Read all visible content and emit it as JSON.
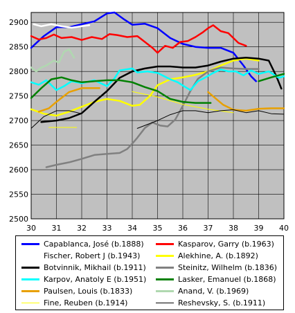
{
  "chart_data": {
    "type": "line",
    "xlabel": "",
    "ylabel": "",
    "xlim": [
      30,
      40
    ],
    "ylim": [
      2500,
      2920
    ],
    "x_ticks": [
      "30",
      "31",
      "32",
      "33",
      "34",
      "35",
      "36",
      "37",
      "38",
      "39",
      "40"
    ],
    "y_ticks": [
      "2500",
      "2550",
      "2600",
      "2650",
      "2700",
      "2750",
      "2800",
      "2850",
      "2900"
    ],
    "grid": true,
    "background": "#c0c0c0",
    "legend_position": "bottom",
    "series": [
      {
        "name": "Capablanca, José (b.1888)",
        "color": "#0000ff",
        "width": 2.5,
        "points": [
          [
            30,
            2848
          ],
          [
            30.5,
            2872
          ],
          [
            31,
            2890
          ],
          [
            31.5,
            2890
          ],
          [
            32,
            2896
          ],
          [
            32.5,
            2902
          ],
          [
            33,
            2918
          ],
          [
            33.3,
            2920
          ],
          [
            33.7,
            2905
          ],
          [
            34,
            2895
          ],
          [
            34.5,
            2897
          ],
          [
            35,
            2888
          ],
          [
            35.5,
            2868
          ],
          [
            36,
            2856
          ],
          [
            36.5,
            2850
          ],
          [
            37,
            2848
          ],
          [
            37.5,
            2848
          ],
          [
            38,
            2838
          ],
          [
            38.4,
            2812
          ],
          [
            38.7,
            2790
          ],
          [
            38.9,
            2780
          ]
        ]
      },
      {
        "name": "Kasparov, Garry (b.1963)",
        "color": "#ff0000",
        "width": 2.5,
        "points": [
          [
            30,
            2872
          ],
          [
            30.3,
            2865
          ],
          [
            30.6,
            2868
          ],
          [
            30.9,
            2875
          ],
          [
            31.2,
            2868
          ],
          [
            31.6,
            2870
          ],
          [
            32,
            2864
          ],
          [
            32.4,
            2870
          ],
          [
            32.8,
            2866
          ],
          [
            33.1,
            2876
          ],
          [
            33.4,
            2874
          ],
          [
            33.8,
            2870
          ],
          [
            34.2,
            2872
          ],
          [
            34.5,
            2860
          ],
          [
            34.8,
            2848
          ],
          [
            35,
            2838
          ],
          [
            35.3,
            2852
          ],
          [
            35.6,
            2848
          ],
          [
            35.9,
            2860
          ],
          [
            36.2,
            2862
          ],
          [
            36.5,
            2870
          ],
          [
            36.8,
            2880
          ],
          [
            37,
            2888
          ],
          [
            37.2,
            2894
          ],
          [
            37.5,
            2882
          ],
          [
            37.8,
            2878
          ],
          [
            38,
            2868
          ],
          [
            38.2,
            2858
          ],
          [
            38.5,
            2852
          ]
        ]
      },
      {
        "name": "Fischer, Robert J (b.1943)",
        "color": "#ffffff",
        "width": 2.5,
        "points": [
          [
            30.1,
            2896
          ],
          [
            30.4,
            2892
          ],
          [
            30.8,
            2896
          ],
          [
            31.2,
            2892
          ],
          [
            31.6,
            2889
          ],
          [
            32,
            2892
          ],
          [
            32.3,
            2894
          ]
        ]
      },
      {
        "name": "Alekhine, A. (b.1892)",
        "color": "#ffff00",
        "width": 2.5,
        "points": [
          [
            30,
            2723
          ],
          [
            30.5,
            2714
          ],
          [
            31,
            2710
          ],
          [
            31.5,
            2718
          ],
          [
            32,
            2728
          ],
          [
            32.5,
            2738
          ],
          [
            33,
            2744
          ],
          [
            33.5,
            2740
          ],
          [
            34,
            2730
          ],
          [
            34.3,
            2732
          ],
          [
            34.7,
            2750
          ],
          [
            35,
            2772
          ],
          [
            35.5,
            2784
          ],
          [
            36,
            2788
          ],
          [
            36.5,
            2793
          ],
          [
            37,
            2800
          ],
          [
            37.5,
            2812
          ],
          [
            38,
            2822
          ],
          [
            38.5,
            2826
          ],
          [
            39,
            2822
          ]
        ]
      },
      {
        "name": "Botvinnik, Mikhail (b.1911)",
        "color": "#000000",
        "width": 2.5,
        "points": [
          [
            30.4,
            2697
          ],
          [
            31,
            2700
          ],
          [
            31.5,
            2705
          ],
          [
            32,
            2715
          ],
          [
            32.5,
            2738
          ],
          [
            33,
            2760
          ],
          [
            33.5,
            2787
          ],
          [
            34,
            2800
          ],
          [
            34.5,
            2806
          ],
          [
            35,
            2810
          ],
          [
            35.5,
            2810
          ],
          [
            36,
            2808
          ],
          [
            36.5,
            2808
          ],
          [
            37,
            2812
          ],
          [
            37.5,
            2820
          ],
          [
            38,
            2826
          ],
          [
            38.5,
            2828
          ],
          [
            39,
            2826
          ],
          [
            39.4,
            2822
          ],
          [
            39.7,
            2790
          ],
          [
            39.9,
            2765
          ]
        ]
      },
      {
        "name": "Steinitz, Wilhelm (b.1836)",
        "color": "#808080",
        "width": 2.5,
        "points": [
          [
            30.6,
            2605
          ],
          [
            31,
            2610
          ],
          [
            31.5,
            2615
          ],
          [
            32,
            2622
          ],
          [
            32.5,
            2630
          ],
          [
            33,
            2632
          ],
          [
            33.5,
            2634
          ],
          [
            33.8,
            2642
          ],
          [
            34,
            2653
          ],
          [
            34.2,
            2665
          ],
          [
            34.5,
            2685
          ],
          [
            34.8,
            2696
          ],
          [
            35.1,
            2690
          ],
          [
            35.4,
            2688
          ],
          [
            35.7,
            2702
          ],
          [
            36,
            2730
          ],
          [
            36.3,
            2760
          ],
          [
            36.6,
            2785
          ],
          [
            37,
            2800
          ],
          [
            37.5,
            2808
          ],
          [
            38,
            2806
          ],
          [
            38.5,
            2805
          ],
          [
            39,
            2805
          ]
        ]
      },
      {
        "name": "Karpov, Anatoly E (b.1951)",
        "color": "#00ffff",
        "width": 2.5,
        "points": [
          [
            30,
            2778
          ],
          [
            30.3,
            2773
          ],
          [
            30.6,
            2782
          ],
          [
            31,
            2762
          ],
          [
            31.3,
            2770
          ],
          [
            31.6,
            2780
          ],
          [
            32,
            2776
          ],
          [
            32.5,
            2782
          ],
          [
            33,
            2770
          ],
          [
            33.3,
            2786
          ],
          [
            33.5,
            2802
          ],
          [
            34,
            2806
          ],
          [
            34.2,
            2798
          ],
          [
            34.6,
            2800
          ],
          [
            35,
            2797
          ],
          [
            35.5,
            2784
          ],
          [
            35.8,
            2778
          ],
          [
            36.1,
            2768
          ],
          [
            36.3,
            2762
          ],
          [
            36.6,
            2780
          ],
          [
            36.9,
            2788
          ],
          [
            37.2,
            2797
          ],
          [
            37.5,
            2804
          ],
          [
            37.8,
            2800
          ],
          [
            38.1,
            2800
          ],
          [
            38.4,
            2792
          ],
          [
            38.7,
            2802
          ],
          [
            39,
            2795
          ],
          [
            39.4,
            2800
          ],
          [
            39.8,
            2787
          ],
          [
            40,
            2790
          ]
        ]
      },
      {
        "name": "Lasker, Emanuel (b.1868)",
        "color": "#008000",
        "width": 2.5,
        "points": [
          [
            30,
            2746
          ],
          [
            30.4,
            2766
          ],
          [
            30.8,
            2784
          ],
          [
            31.2,
            2788
          ],
          [
            31.6,
            2782
          ],
          [
            32,
            2778
          ],
          [
            32.5,
            2780
          ],
          [
            33,
            2782
          ],
          [
            33.5,
            2782
          ],
          [
            34,
            2778
          ],
          [
            34.5,
            2768
          ],
          [
            35,
            2760
          ],
          [
            35.5,
            2744
          ],
          [
            36,
            2738
          ],
          [
            36.5,
            2736
          ],
          [
            37.1,
            2736
          ]
        ]
      },
      {
        "name": "Lasker, Emanuel (b.1868)",
        "color": "#008000",
        "width": 2.5,
        "points": [
          [
            39,
            2780
          ],
          [
            39.5,
            2788
          ],
          [
            40,
            2795
          ]
        ]
      },
      {
        "name": "Paulsen, Louis (b.1833)",
        "color": "#e8a000",
        "width": 2.5,
        "points": [
          [
            30.3,
            2718
          ],
          [
            30.7,
            2725
          ],
          [
            31,
            2738
          ],
          [
            31.5,
            2758
          ],
          [
            32,
            2766
          ],
          [
            32.7,
            2766
          ]
        ]
      },
      {
        "name": "Paulsen, Louis (b.1833)",
        "color": "#e8a000",
        "width": 2.5,
        "points": [
          [
            37,
            2758
          ],
          [
            37.3,
            2745
          ],
          [
            37.6,
            2732
          ],
          [
            38,
            2722
          ],
          [
            38.5,
            2720
          ],
          [
            39,
            2724
          ],
          [
            39.5,
            2725
          ],
          [
            40,
            2725
          ]
        ]
      },
      {
        "name": "Anand, V. (b.1969)",
        "color": "#b0d8b0",
        "width": 2.5,
        "points": [
          [
            30,
            2808
          ],
          [
            30.2,
            2800
          ],
          [
            30.4,
            2808
          ],
          [
            30.6,
            2812
          ],
          [
            30.9,
            2822
          ],
          [
            31.1,
            2818
          ],
          [
            31.3,
            2840
          ],
          [
            31.5,
            2845
          ],
          [
            31.7,
            2828
          ]
        ]
      },
      {
        "name": "Fine, Reuben (b.1914)",
        "color": "#ffff00",
        "width": 1,
        "points": [
          [
            30.7,
            2686
          ],
          [
            31.8,
            2686
          ]
        ]
      },
      {
        "name": "Fine, Reuben (b.1914)",
        "color": "#ffff00",
        "width": 1,
        "points": [
          [
            34,
            2759
          ],
          [
            35,
            2748
          ],
          [
            36,
            2733
          ],
          [
            37,
            2723
          ],
          [
            38,
            2716
          ]
        ]
      },
      {
        "name": "Reshevsky, S. (b.1911)",
        "color": "#000000",
        "width": 1,
        "points": [
          [
            30,
            2684
          ],
          [
            30.5,
            2708
          ],
          [
            31,
            2720
          ],
          [
            31.5,
            2720
          ],
          [
            32,
            2714
          ]
        ]
      },
      {
        "name": "Reshevsky, S. (b.1911)",
        "color": "#000000",
        "width": 1,
        "points": [
          [
            34.2,
            2684
          ],
          [
            35,
            2700
          ],
          [
            35.5,
            2712
          ],
          [
            36,
            2720
          ],
          [
            36.5,
            2720
          ],
          [
            37,
            2716
          ],
          [
            37.5,
            2720
          ],
          [
            38,
            2722
          ],
          [
            38.5,
            2716
          ],
          [
            39,
            2720
          ],
          [
            39.5,
            2714
          ],
          [
            40,
            2713
          ]
        ]
      }
    ],
    "legend": [
      {
        "label": "Capablanca, José (b.1888)",
        "color": "#0000ff",
        "width": 3
      },
      {
        "label": "Kasparov, Garry (b.1963)",
        "color": "#ff0000",
        "width": 3
      },
      {
        "label": "Fischer, Robert J (b.1943)",
        "color": "#ffffff",
        "width": 3
      },
      {
        "label": "Alekhine, A. (b.1892)",
        "color": "#ffff00",
        "width": 3
      },
      {
        "label": "Botvinnik, Mikhail (b.1911)",
        "color": "#000000",
        "width": 3
      },
      {
        "label": "Steinitz, Wilhelm (b.1836)",
        "color": "#808080",
        "width": 3
      },
      {
        "label": "Karpov, Anatoly E (b.1951)",
        "color": "#00ffff",
        "width": 3
      },
      {
        "label": "Lasker, Emanuel (b.1868)",
        "color": "#008000",
        "width": 3
      },
      {
        "label": "Paulsen, Louis (b.1833)",
        "color": "#e8a000",
        "width": 3
      },
      {
        "label": "Anand, V. (b.1969)",
        "color": "#b0d8b0",
        "width": 3
      },
      {
        "label": "Fine, Reuben (b.1914)",
        "color": "#ffff00",
        "width": 1
      },
      {
        "label": "Reshevsky, S. (b.1911)",
        "color": "#000000",
        "width": 1
      }
    ]
  }
}
